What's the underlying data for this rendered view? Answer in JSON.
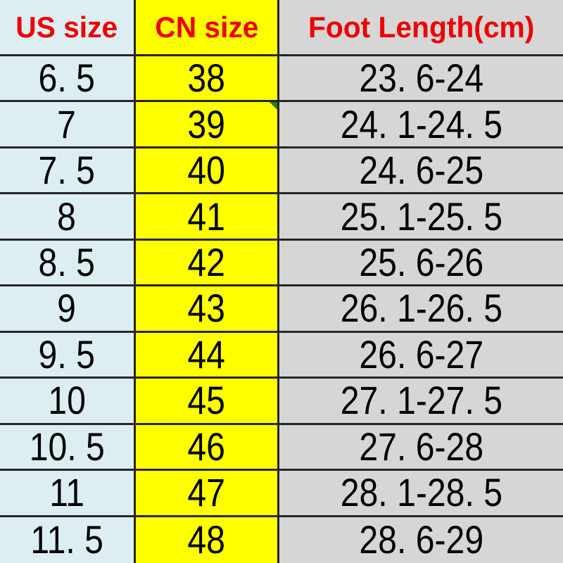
{
  "table": {
    "columns": [
      {
        "label": "US size",
        "bg": "#ddeef2"
      },
      {
        "label": "CN size",
        "bg": "#ffff00"
      },
      {
        "label": "Foot Length(cm)",
        "bg": "#d6d6d6"
      }
    ],
    "header_text_color": "#ee0000",
    "border_color": "#262626",
    "green_marker_color": "#1e7d1e",
    "green_marker_row_index": 1,
    "rows": [
      {
        "us": "6. 5",
        "cn": "38",
        "foot": "23. 6-24"
      },
      {
        "us": "7",
        "cn": "39",
        "foot": "24. 1-24. 5"
      },
      {
        "us": "7. 5",
        "cn": "40",
        "foot": "24. 6-25"
      },
      {
        "us": "8",
        "cn": "41",
        "foot": "25. 1-25. 5"
      },
      {
        "us": "8. 5",
        "cn": "42",
        "foot": "25. 6-26"
      },
      {
        "us": "9",
        "cn": "43",
        "foot": "26. 1-26. 5"
      },
      {
        "us": "9. 5",
        "cn": "44",
        "foot": "26. 6-27"
      },
      {
        "us": "10",
        "cn": "45",
        "foot": "27. 1-27. 5"
      },
      {
        "us": "10. 5",
        "cn": "46",
        "foot": "27. 6-28"
      },
      {
        "us": "11",
        "cn": "47",
        "foot": "28. 1-28. 5"
      },
      {
        "us": "11. 5",
        "cn": "48",
        "foot": "28. 6-29"
      }
    ]
  }
}
